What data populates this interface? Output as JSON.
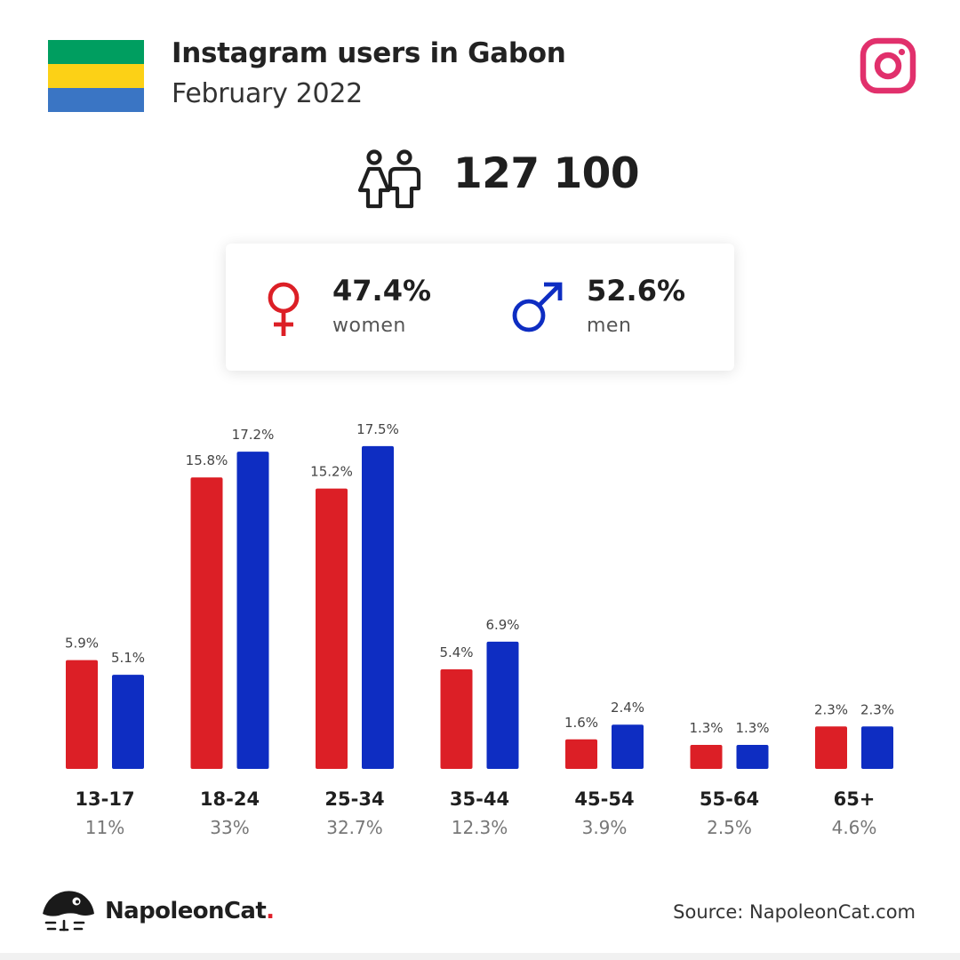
{
  "header": {
    "title": "Instagram users in Gabon",
    "subtitle": "February 2022",
    "flag_colors": [
      "#009E60",
      "#FCD116",
      "#3A75C4"
    ],
    "instagram_color": "#E1306C"
  },
  "total": {
    "value": "127 100",
    "icon": "people-icon"
  },
  "gender": {
    "women": {
      "percent": "47.4%",
      "label": "women",
      "color": "#DC1F26",
      "icon": "female-symbol-icon"
    },
    "men": {
      "percent": "52.6%",
      "label": "men",
      "color": "#0E2DC2",
      "icon": "male-symbol-icon"
    }
  },
  "chart_data": {
    "type": "bar",
    "categories": [
      "13-17",
      "18-24",
      "25-34",
      "35-44",
      "45-54",
      "55-64",
      "65+"
    ],
    "category_totals": [
      "11%",
      "33%",
      "32.7%",
      "12.3%",
      "3.9%",
      "2.5%",
      "4.6%"
    ],
    "series": [
      {
        "values": [
          5.9,
          15.8,
          15.2,
          5.4,
          1.6,
          1.3,
          2.3
        ],
        "labels": [
          "5.9%",
          "15.8%",
          "15.2%",
          "5.4%",
          "1.6%",
          "1.3%",
          "2.3%"
        ],
        "color": "#DC1F26"
      },
      {
        "values": [
          5.1,
          17.2,
          17.5,
          6.9,
          2.4,
          1.3,
          2.3
        ],
        "labels": [
          "5.1%",
          "17.2%",
          "17.5%",
          "6.9%",
          "2.4%",
          "1.3%",
          "2.3%"
        ],
        "color": "#0E2DC2"
      }
    ],
    "title": "",
    "xlabel": "",
    "ylabel": "",
    "grid": false,
    "legend": "none"
  },
  "footer": {
    "brand": "NapoleonCat",
    "brand_dot": ".",
    "source": "Source: NapoleonCat.com"
  }
}
